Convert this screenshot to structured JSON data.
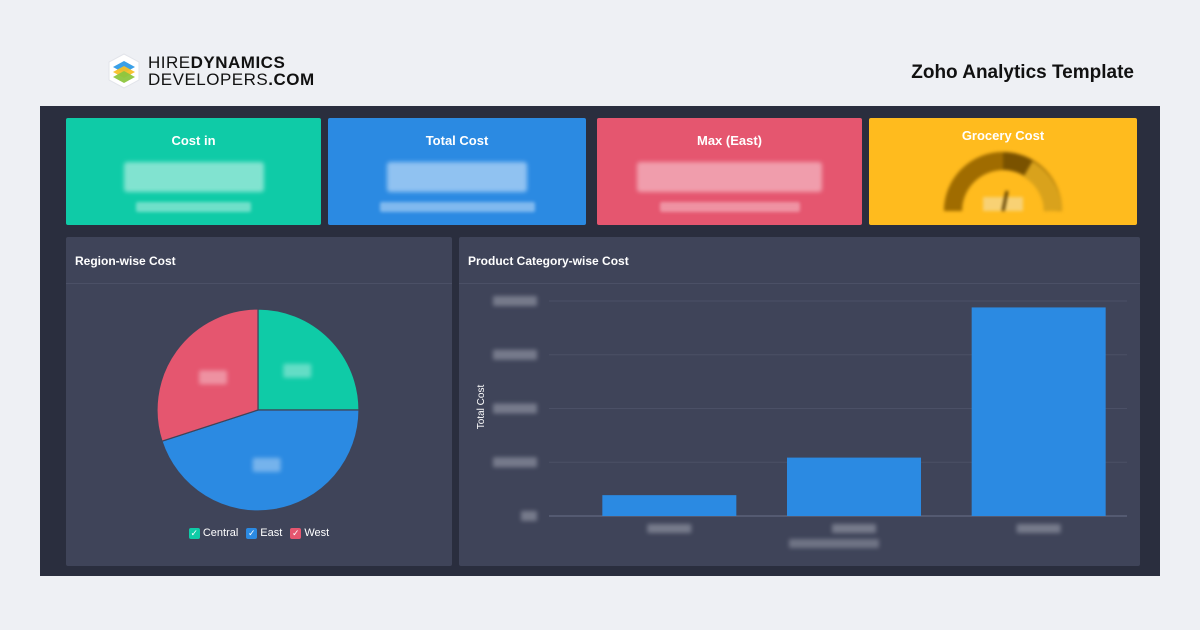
{
  "brand": {
    "logo_line1_light": "HIRE",
    "logo_line1_bold": "DYNAMICS",
    "logo_line2_light": "DEVELOPERS",
    "logo_line2_bold": ".COM",
    "title": "Zoho Analytics Template"
  },
  "kpis": [
    {
      "title": "Cost in",
      "color": "#0fcba7"
    },
    {
      "title": "Total Cost",
      "color": "#2b8ae2"
    },
    {
      "title": "Max (East)",
      "color": "#e5566f"
    },
    {
      "title": "Grocery Cost",
      "color": "#ffbb1e"
    }
  ],
  "region_panel": {
    "title": "Region-wise Cost",
    "legend": [
      {
        "label": "Central",
        "color": "#0fcba7"
      },
      {
        "label": "East",
        "color": "#2b8ae2"
      },
      {
        "label": "West",
        "color": "#e5566f"
      }
    ]
  },
  "category_panel": {
    "title": "Product Category-wise Cost",
    "ylabel": "Total Cost"
  },
  "chart_data": [
    {
      "type": "pie",
      "title": "Region-wise Cost",
      "categories": [
        "Central",
        "East",
        "West"
      ],
      "values": [
        25,
        45,
        30
      ],
      "colors": [
        "#0fcba7",
        "#2b8ae2",
        "#e5566f"
      ],
      "legend": "bottom"
    },
    {
      "type": "bar",
      "title": "Product Category-wise Cost",
      "categories": [
        "",
        "",
        ""
      ],
      "values": [
        10,
        28,
        100
      ],
      "ylabel": "Total Cost",
      "ylim": [
        0,
        105
      ],
      "grid": true,
      "color": "#2b8ae2"
    }
  ]
}
